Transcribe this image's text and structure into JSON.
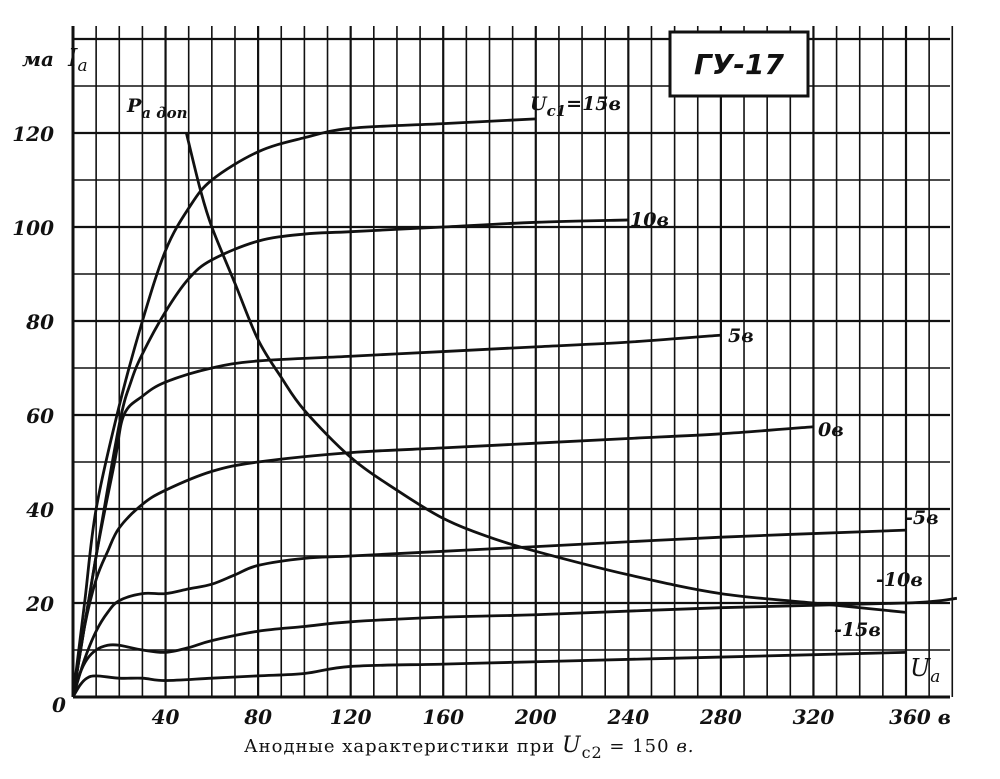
{
  "chart_data": {
    "type": "line",
    "title": "ГУ-17",
    "caption": {
      "prefix": "Анодные характеристики при ",
      "var": "U",
      "sub": "c2",
      "suffix": " = 150 ",
      "unit": "в."
    },
    "y_unit": "ма",
    "y_name": "I",
    "y_name_sub": "a",
    "x_name": "U",
    "x_name_sub": "a",
    "origin_label": "0",
    "x_ticks": [
      "40",
      "80",
      "120",
      "160",
      "200",
      "240",
      "280",
      "320",
      "360 в"
    ],
    "y_ticks": [
      "20",
      "40",
      "60",
      "80",
      "100",
      "120"
    ],
    "xlim": [
      0,
      382
    ],
    "ylim": [
      0,
      142
    ],
    "grid": true,
    "series": [
      {
        "name": "U",
        "name_sub": "c1",
        "name_rest": "=15в",
        "points": [
          [
            0,
            0
          ],
          [
            5,
            20
          ],
          [
            10,
            40
          ],
          [
            20,
            62
          ],
          [
            30,
            80
          ],
          [
            40,
            95
          ],
          [
            50,
            104
          ],
          [
            60,
            110
          ],
          [
            80,
            116
          ],
          [
            100,
            119
          ],
          [
            120,
            121
          ],
          [
            160,
            122
          ],
          [
            200,
            123
          ]
        ]
      },
      {
        "name": "10в",
        "points": [
          [
            0,
            0
          ],
          [
            10,
            30
          ],
          [
            20,
            58
          ],
          [
            25,
            67
          ],
          [
            30,
            73
          ],
          [
            40,
            82
          ],
          [
            50,
            89
          ],
          [
            60,
            93
          ],
          [
            80,
            97
          ],
          [
            100,
            98.5
          ],
          [
            120,
            99
          ],
          [
            160,
            100
          ],
          [
            200,
            101
          ],
          [
            240,
            101.5
          ]
        ]
      },
      {
        "name": "5в",
        "points": [
          [
            0,
            0
          ],
          [
            10,
            30
          ],
          [
            18,
            50
          ],
          [
            22,
            60
          ],
          [
            30,
            64
          ],
          [
            40,
            67
          ],
          [
            60,
            70
          ],
          [
            80,
            71.5
          ],
          [
            120,
            72.5
          ],
          [
            160,
            73.5
          ],
          [
            200,
            74.5
          ],
          [
            240,
            75.5
          ],
          [
            280,
            77
          ]
        ]
      },
      {
        "name": "0в",
        "points": [
          [
            0,
            0
          ],
          [
            5,
            15
          ],
          [
            10,
            25
          ],
          [
            15,
            31
          ],
          [
            20,
            36
          ],
          [
            30,
            41
          ],
          [
            40,
            44
          ],
          [
            60,
            48
          ],
          [
            80,
            50
          ],
          [
            120,
            52
          ],
          [
            160,
            53
          ],
          [
            200,
            54
          ],
          [
            240,
            55
          ],
          [
            280,
            56
          ],
          [
            320,
            57.5
          ]
        ]
      },
      {
        "name": "-5в",
        "points": [
          [
            0,
            0
          ],
          [
            5,
            8
          ],
          [
            10,
            14
          ],
          [
            15,
            18
          ],
          [
            20,
            20.5
          ],
          [
            30,
            22
          ],
          [
            40,
            22
          ],
          [
            50,
            23
          ],
          [
            60,
            24
          ],
          [
            70,
            26
          ],
          [
            80,
            28
          ],
          [
            100,
            29.5
          ],
          [
            120,
            30
          ],
          [
            160,
            31
          ],
          [
            200,
            32
          ],
          [
            280,
            34
          ],
          [
            360,
            35.5
          ]
        ]
      },
      {
        "name": "-10в",
        "points": [
          [
            0,
            0
          ],
          [
            3,
            5
          ],
          [
            6,
            8
          ],
          [
            10,
            10
          ],
          [
            15,
            11
          ],
          [
            20,
            11
          ],
          [
            30,
            10
          ],
          [
            40,
            9.5
          ],
          [
            50,
            10.5
          ],
          [
            60,
            12
          ],
          [
            80,
            14
          ],
          [
            100,
            15
          ],
          [
            120,
            16
          ],
          [
            160,
            17
          ],
          [
            200,
            17.5
          ],
          [
            280,
            19
          ],
          [
            360,
            20
          ],
          [
            382,
            21
          ]
        ]
      },
      {
        "name": "-15в",
        "points": [
          [
            0,
            0
          ],
          [
            3,
            2.5
          ],
          [
            6,
            4
          ],
          [
            10,
            4.5
          ],
          [
            20,
            4
          ],
          [
            30,
            4
          ],
          [
            40,
            3.5
          ],
          [
            60,
            4
          ],
          [
            80,
            4.5
          ],
          [
            100,
            5
          ],
          [
            120,
            6.5
          ],
          [
            160,
            7
          ],
          [
            200,
            7.5
          ],
          [
            280,
            8.5
          ],
          [
            360,
            9.5
          ]
        ]
      },
      {
        "name": "P",
        "name_sub": "a доп",
        "points": [
          [
            49,
            120
          ],
          [
            55,
            108
          ],
          [
            60,
            100
          ],
          [
            70,
            88
          ],
          [
            80,
            76
          ],
          [
            90,
            68
          ],
          [
            100,
            61
          ],
          [
            120,
            51
          ],
          [
            140,
            44
          ],
          [
            160,
            38
          ],
          [
            180,
            34
          ],
          [
            200,
            31
          ],
          [
            240,
            26
          ],
          [
            280,
            22
          ],
          [
            320,
            20
          ],
          [
            360,
            18
          ]
        ]
      }
    ]
  }
}
